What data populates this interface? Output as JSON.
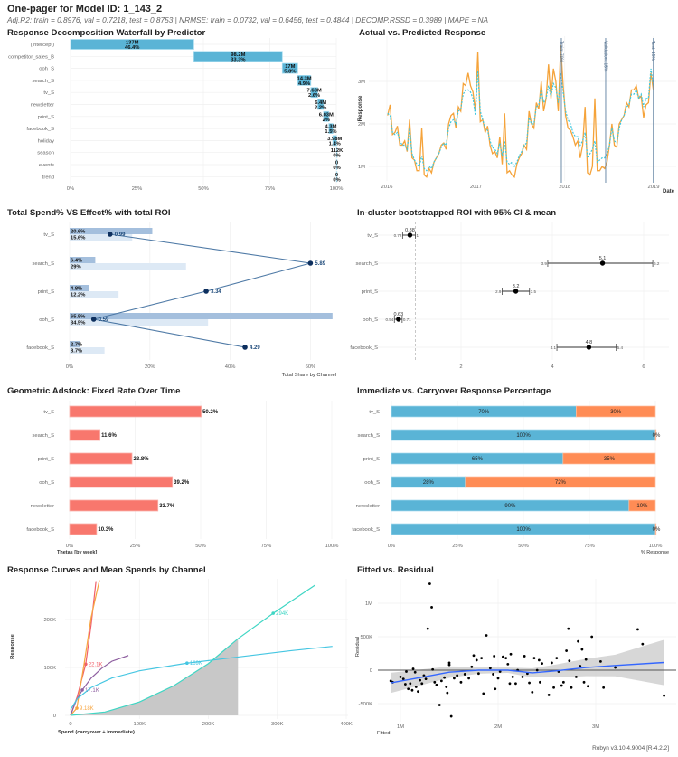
{
  "header": {
    "title": "One-pager for Model ID: 1_143_2",
    "subtitle": "Adj.R2: train = 0.8976, val = 0.7218, test = 0.8753 | NRMSE: train = 0.0732, val = 0.6456, test = 0.4844 | DECOMP.RSSD = 0.3989 | MAPE = NA"
  },
  "footer": "Robyn v3.10.4.9004 [R-4.2.2]",
  "colors": {
    "waterfall": "#5ab4d6",
    "spend_bar": "#a4bfdd",
    "effect_bar": "#dde9f5",
    "roi_line": "#4f7aa6",
    "roi_point": "#0d2f5e",
    "adstock": "#f8776d",
    "immediate": "#5ab4d6",
    "carryover": "#ff8c55",
    "actual": "#f5a33a",
    "predicted": "#3ec8e0",
    "smooth": "#3366ff"
  },
  "chart_data": [
    {
      "id": "waterfall",
      "type": "bar",
      "title": "Response Decomposition Waterfall by Predictor",
      "categories": [
        "(Intercept)",
        "competitor_sales_B",
        "ooh_S",
        "search_S",
        "tv_S",
        "newsletter",
        "print_S",
        "facebook_S",
        "holiday",
        "season",
        "events",
        "trend"
      ],
      "values_label": [
        "137M",
        "98.2M",
        "17M",
        "14.3M",
        "7.68M",
        "6.4M",
        "6.03M",
        "4.3M",
        "3.98M",
        "112K",
        "0",
        "0"
      ],
      "percent": [
        46.4,
        33.3,
        5.8,
        4.9,
        2.6,
        2.2,
        2,
        1.5,
        1.4,
        0,
        0,
        0
      ],
      "xticks": [
        "0%",
        "25%",
        "50%",
        "75%",
        "100%"
      ],
      "xlim": [
        0,
        100
      ]
    },
    {
      "id": "actual_vs_predicted",
      "type": "line",
      "title": "Actual vs. Predicted Response",
      "xlabel": "Date",
      "ylabel": "Response",
      "xticks": [
        "2016",
        "2017",
        "2018",
        "2019"
      ],
      "yticks": [
        "1M",
        "2M",
        "3M"
      ],
      "x_range": [
        "2016-01-04",
        "2018-12-31"
      ],
      "ylim": [
        0.6,
        3.9
      ],
      "actual": [
        2.2,
        2.45,
        1.75,
        1.8,
        1.95,
        1.5,
        1.5,
        1.6,
        1.35,
        2.1,
        1.2,
        1.15,
        0.9,
        0.9,
        1.9,
        0.8,
        0.75,
        0.95,
        0.85,
        1.1,
        1.2,
        1.3,
        1.5,
        1.55,
        1.4,
        2.0,
        2.2,
        2.25,
        1.9,
        2.4,
        2.3,
        2.95,
        2.9,
        3.2,
        2.9,
        2.75,
        2.3,
        3.7,
        2.05,
        2.1,
        1.8,
        1.95,
        1.5,
        1.3,
        1.35,
        1.2,
        1.7,
        1.05,
        2.25,
        0.85,
        0.9,
        0.8,
        0.75,
        1.05,
        1.2,
        1.3,
        1.5,
        1.4,
        2.3,
        2.0,
        1.9,
        2.5,
        2.35,
        3.0,
        2.3,
        2.6,
        3.4,
        2.6,
        3.3,
        3.0,
        2.3,
        3.85,
        2.9,
        2.2,
        1.9,
        1.85,
        1.7,
        1.5,
        1.6,
        1.2,
        1.5,
        2.4,
        0.85,
        0.8,
        1.0,
        2.6,
        0.9,
        0.9,
        1.0,
        0.95,
        1.1,
        1.5,
        2.0,
        1.5,
        1.45,
        2.0,
        2.1,
        2.2,
        2.5,
        2.4,
        2.8,
        2.8,
        2.9,
        2.6,
        2.65,
        2.15,
        2.45,
        2.5,
        3.2,
        2.8
      ],
      "predicted": [
        2.25,
        2.2,
        1.8,
        1.75,
        1.8,
        1.6,
        1.5,
        1.5,
        1.4,
        1.9,
        1.3,
        1.15,
        1.05,
        1.0,
        1.25,
        0.95,
        0.9,
        1.0,
        0.95,
        1.1,
        1.2,
        1.3,
        1.45,
        1.55,
        1.5,
        1.9,
        2.05,
        2.1,
        2.0,
        2.3,
        2.35,
        2.7,
        2.8,
        2.8,
        2.75,
        2.6,
        2.2,
        3.25,
        2.3,
        2.1,
        1.9,
        1.85,
        1.6,
        1.45,
        1.4,
        1.3,
        1.55,
        1.25,
        1.6,
        1.1,
        1.05,
        1.1,
        1.0,
        1.1,
        1.25,
        1.35,
        1.5,
        1.55,
        2.15,
        2.0,
        2.0,
        2.4,
        2.45,
        2.8,
        2.5,
        2.6,
        2.9,
        2.65,
        2.95,
        2.85,
        2.5,
        3.2,
        2.75,
        2.3,
        2.1,
        2.0,
        1.8,
        1.7,
        1.7,
        1.5,
        1.6,
        1.8,
        1.2,
        1.3,
        1.4,
        1.6,
        1.1,
        1.15,
        1.2,
        1.2,
        1.3,
        1.5,
        1.9,
        1.6,
        1.55,
        1.9,
        2.1,
        2.2,
        2.4,
        2.45,
        2.7,
        2.7,
        2.8,
        2.6,
        2.7,
        2.4,
        2.6,
        2.6,
        3.3,
        2.9
      ],
      "splits": [
        {
          "date": "2017-12-18",
          "label": "Train: 70%"
        },
        {
          "date": "2018-06-18",
          "label": "Validation: 15%"
        },
        {
          "date": "2018-12-31",
          "label": "Test: 15%"
        }
      ]
    },
    {
      "id": "spend_vs_effect",
      "type": "bar",
      "title": "Total Spend% VS Effect% with total ROI",
      "xlabel": "Total Share by Channel",
      "categories": [
        "tv_S",
        "search_S",
        "print_S",
        "ooh_S",
        "facebook_S"
      ],
      "spend_share": [
        20.6,
        6.4,
        4.8,
        65.5,
        2.7
      ],
      "effect_share": [
        15.6,
        29,
        12.2,
        34.5,
        8.7
      ],
      "roi": [
        0.99,
        5.89,
        3.34,
        0.59,
        4.29
      ],
      "roi_label": [
        "0.99",
        "5.89",
        "3.34",
        "0.59",
        "4.29"
      ],
      "xticks": [
        "0%",
        "20%",
        "40%",
        "60%"
      ],
      "xlim": [
        0,
        67
      ]
    },
    {
      "id": "roi_ci",
      "type": "scatter",
      "title": "In-cluster bootstrapped ROI with 95% CI & mean",
      "categories": [
        "tv_S",
        "search_S",
        "print_S",
        "ooh_S",
        "facebook_S"
      ],
      "mean": [
        0.88,
        5.1,
        3.2,
        0.63,
        4.8
      ],
      "low": [
        0.72,
        3.9,
        2.9,
        0.54,
        4.1
      ],
      "high": [
        1,
        6.2,
        3.5,
        0.71,
        5.4
      ],
      "mean_label": [
        "0.88",
        "5.1",
        "3.2",
        "0.63",
        "4.8"
      ],
      "low_label": [
        "0.72",
        "3.9",
        "2.9",
        "0.54",
        "4.1"
      ],
      "high_label": [
        "1",
        "6.2",
        "3.5",
        "0.71",
        "5.4"
      ],
      "reference": 1,
      "xticks": [
        "2",
        "4",
        "6"
      ],
      "xlim": [
        0,
        6.6
      ]
    },
    {
      "id": "adstock",
      "type": "bar",
      "title": "Geometric Adstock: Fixed Rate Over Time",
      "xlabel": "Thetas [by week]",
      "categories": [
        "tv_S",
        "search_S",
        "print_S",
        "ooh_S",
        "newsletter",
        "facebook_S"
      ],
      "values": [
        50.2,
        11.6,
        23.8,
        39.2,
        33.7,
        10.3
      ],
      "value_label": [
        "50.2%",
        "11.6%",
        "23.8%",
        "39.2%",
        "33.7%",
        "10.3%"
      ],
      "xticks": [
        "0%",
        "25%",
        "50%",
        "75%",
        "100%"
      ],
      "xlim": [
        0,
        100
      ]
    },
    {
      "id": "immediate_carryover",
      "type": "bar",
      "title": "Immediate vs. Carryover Response Percentage",
      "xlabel": "% Response",
      "categories": [
        "tv_S",
        "search_S",
        "print_S",
        "ooh_S",
        "newsletter",
        "facebook_S"
      ],
      "immediate": [
        70,
        100,
        65,
        28,
        90,
        100
      ],
      "carryover": [
        30,
        0,
        35,
        72,
        10,
        0
      ],
      "immediate_label": [
        "70%",
        "100%",
        "65%",
        "28%",
        "90%",
        "100%"
      ],
      "carryover_label": [
        "30%",
        "0%",
        "35%",
        "72%",
        "10%",
        "0%"
      ],
      "xticks": [
        "0%",
        "25%",
        "50%",
        "75%",
        "100%"
      ],
      "xlim": [
        0,
        100
      ]
    },
    {
      "id": "response_curves",
      "type": "line",
      "title": "Response Curves and Mean Spends by Channel",
      "xlabel": "Spend (carryover + immediate)",
      "ylabel": "Response",
      "xticks": [
        "0",
        "100K",
        "200K",
        "300K",
        "400K"
      ],
      "yticks": [
        "0",
        "100K",
        "200K"
      ],
      "xlim": [
        0,
        400
      ],
      "ylim": [
        0,
        290
      ],
      "curves": [
        {
          "color": "#f0606a",
          "points": [
            [
              0,
              0
            ],
            [
              10,
              40
            ],
            [
              22.1,
              107
            ],
            [
              30,
              190
            ],
            [
              37,
              280
            ]
          ],
          "mean": [
            22.1,
            107
          ],
          "mean_label": "22.1K"
        },
        {
          "color": "#f7a540",
          "points": [
            [
              0,
              0
            ],
            [
              9.18,
              15
            ],
            [
              20,
              110
            ],
            [
              30,
              205
            ],
            [
              42,
              282
            ]
          ],
          "mean": [
            9.18,
            15
          ],
          "mean_label": "9.18K"
        },
        {
          "color": "#8e5fa0",
          "points": [
            [
              0,
              0
            ],
            [
              8,
              30
            ],
            [
              17.1,
              53
            ],
            [
              30,
              78
            ],
            [
              45,
              98
            ],
            [
              60,
              113
            ],
            [
              84,
              125
            ]
          ],
          "mean": [
            17.1,
            53
          ],
          "mean_label": "17.1K"
        },
        {
          "color": "#45c6e2",
          "points": [
            [
              0,
              12
            ],
            [
              10,
              35
            ],
            [
              30,
              58
            ],
            [
              60,
              78
            ],
            [
              100,
              93
            ],
            [
              169,
              109
            ],
            [
              250,
              123
            ],
            [
              320,
              135
            ],
            [
              380,
              144
            ]
          ],
          "mean": [
            169,
            109
          ],
          "mean_label": "169K"
        },
        {
          "color": "#3fd6c4",
          "points": [
            [
              0,
              0
            ],
            [
              50,
              7
            ],
            [
              100,
              28
            ],
            [
              150,
              62
            ],
            [
              200,
              108
            ],
            [
              243,
              160
            ],
            [
              294,
              213
            ],
            [
              355,
              272
            ]
          ],
          "mean": [
            294,
            213
          ],
          "mean_label": "294K",
          "shade_to": 243
        }
      ]
    },
    {
      "id": "fitted_residual",
      "type": "scatter",
      "title": "Fitted vs. Residual",
      "xlabel": "Fitted",
      "ylabel": "Residual",
      "xticks": [
        "1M",
        "2M",
        "3M"
      ],
      "yticks": [
        "-500K",
        "0",
        "500K",
        "1M"
      ],
      "xlim": [
        0.78,
        3.75
      ],
      "ylim": [
        -800,
        1350
      ],
      "points": [
        [
          0.9,
          -160
        ],
        [
          0.92,
          -180
        ],
        [
          1.0,
          -100
        ],
        [
          1.03,
          -130
        ],
        [
          1.05,
          -210
        ],
        [
          1.06,
          -20
        ],
        [
          1.08,
          -280
        ],
        [
          1.1,
          -200
        ],
        [
          1.12,
          -300
        ],
        [
          1.13,
          20
        ],
        [
          1.15,
          -30
        ],
        [
          1.16,
          -250
        ],
        [
          1.18,
          -320
        ],
        [
          1.2,
          -150
        ],
        [
          1.22,
          -200
        ],
        [
          1.24,
          -80
        ],
        [
          1.26,
          -130
        ],
        [
          1.28,
          620
        ],
        [
          1.3,
          1290
        ],
        [
          1.32,
          940
        ],
        [
          1.33,
          10
        ],
        [
          1.35,
          -180
        ],
        [
          1.37,
          -220
        ],
        [
          1.4,
          -520
        ],
        [
          1.42,
          -160
        ],
        [
          1.45,
          -110
        ],
        [
          1.47,
          -250
        ],
        [
          1.48,
          -340
        ],
        [
          1.5,
          80
        ],
        [
          1.5,
          110
        ],
        [
          1.52,
          -690
        ],
        [
          1.55,
          -120
        ],
        [
          1.58,
          -80
        ],
        [
          1.62,
          -180
        ],
        [
          1.66,
          -60
        ],
        [
          1.7,
          -120
        ],
        [
          1.73,
          50
        ],
        [
          1.75,
          220
        ],
        [
          1.78,
          150
        ],
        [
          1.8,
          -50
        ],
        [
          1.83,
          180
        ],
        [
          1.85,
          -350
        ],
        [
          1.88,
          520
        ],
        [
          1.92,
          30
        ],
        [
          1.95,
          -60
        ],
        [
          1.96,
          210
        ],
        [
          1.97,
          -280
        ],
        [
          2.0,
          -120
        ],
        [
          2.02,
          -20
        ],
        [
          2.05,
          200
        ],
        [
          2.08,
          180
        ],
        [
          2.1,
          90
        ],
        [
          2.12,
          -200
        ],
        [
          2.13,
          240
        ],
        [
          2.15,
          -100
        ],
        [
          2.18,
          -200
        ],
        [
          2.2,
          0
        ],
        [
          2.25,
          -100
        ],
        [
          2.27,
          210
        ],
        [
          2.3,
          -50
        ],
        [
          2.32,
          -190
        ],
        [
          2.35,
          -330
        ],
        [
          2.37,
          180
        ],
        [
          2.4,
          0
        ],
        [
          2.42,
          150
        ],
        [
          2.43,
          -180
        ],
        [
          2.45,
          100
        ],
        [
          2.52,
          -370
        ],
        [
          2.55,
          110
        ],
        [
          2.57,
          -260
        ],
        [
          2.6,
          180
        ],
        [
          2.62,
          -20
        ],
        [
          2.65,
          -230
        ],
        [
          2.67,
          -180
        ],
        [
          2.7,
          290
        ],
        [
          2.72,
          620
        ],
        [
          2.73,
          140
        ],
        [
          2.75,
          -260
        ],
        [
          2.8,
          -100
        ],
        [
          2.82,
          430
        ],
        [
          2.84,
          60
        ],
        [
          2.86,
          310
        ],
        [
          2.88,
          -180
        ],
        [
          2.9,
          160
        ],
        [
          2.92,
          -240
        ],
        [
          2.96,
          500
        ],
        [
          3.05,
          130
        ],
        [
          3.08,
          -260
        ],
        [
          3.2,
          40
        ],
        [
          3.43,
          610
        ],
        [
          3.48,
          390
        ],
        [
          3.7,
          -380
        ]
      ],
      "smooth": [
        [
          0.9,
          -190
        ],
        [
          1.2,
          -110
        ],
        [
          1.5,
          -30
        ],
        [
          1.8,
          0
        ],
        [
          2.1,
          0
        ],
        [
          2.35,
          -40
        ],
        [
          2.6,
          -10
        ],
        [
          2.9,
          40
        ],
        [
          3.2,
          70
        ],
        [
          3.7,
          115
        ]
      ]
    }
  ]
}
